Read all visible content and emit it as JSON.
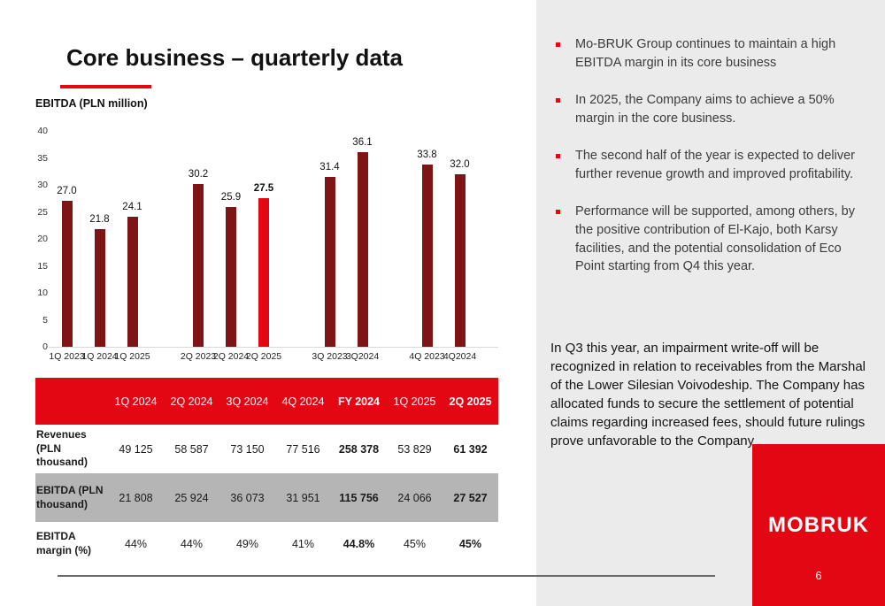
{
  "slide": {
    "title": "Core business – quarterly data",
    "chart_heading": "EBITDA (PLN million)",
    "logo_text": "MOBRUK",
    "page_number": "6"
  },
  "chart_data": {
    "type": "bar",
    "title": "EBITDA (PLN million)",
    "ylabel": "",
    "xlabel": "",
    "ylim": [
      0,
      40
    ],
    "yticks": [
      40,
      35,
      30,
      25,
      20,
      15,
      10,
      5,
      0
    ],
    "grid": false,
    "legend": false,
    "bar_color": "#7f1416",
    "highlight_color": "#e30613",
    "groups": [
      {
        "bars": [
          {
            "label": "1Q 2023",
            "value": 27.0,
            "display": "27.0"
          },
          {
            "label": "1Q 2024",
            "value": 21.8,
            "display": "21.8"
          },
          {
            "label": "1Q 2025",
            "value": 24.1,
            "display": "24.1"
          }
        ]
      },
      {
        "bars": [
          {
            "label": "2Q 2023",
            "value": 30.2,
            "display": "30.2"
          },
          {
            "label": "2Q 2024",
            "value": 25.9,
            "display": "25.9"
          },
          {
            "label": "2Q 2025",
            "value": 27.5,
            "display": "27.5",
            "highlight": true
          }
        ]
      },
      {
        "bars": [
          {
            "label": "3Q 2023",
            "value": 31.4,
            "display": "31.4"
          },
          {
            "label": "3Q2024",
            "value": 36.1,
            "display": "36.1"
          }
        ]
      },
      {
        "bars": [
          {
            "label": "4Q 2023",
            "value": 33.8,
            "display": "33.8"
          },
          {
            "label": "4Q2024",
            "value": 32.0,
            "display": "32.0"
          }
        ]
      }
    ]
  },
  "table": {
    "columns": [
      "1Q 2024",
      "2Q 2024",
      "3Q 2024",
      "4Q 2024",
      "FY 2024",
      "1Q 2025",
      "2Q 2025"
    ],
    "emphasized_value_indices": [
      4,
      6
    ],
    "rows": [
      {
        "label": "Revenues (PLN thousand)",
        "shaded": false,
        "values": [
          "49 125",
          "58 587",
          "73 150",
          "77 516",
          "258 378",
          "53 829",
          "61 392"
        ]
      },
      {
        "label": "EBITDA (PLN thousand)",
        "shaded": true,
        "values": [
          "21 808",
          "25 924",
          "36 073",
          "31 951",
          "115 756",
          "24 066",
          "27 527"
        ]
      },
      {
        "label": "EBITDA margin (%)",
        "shaded": false,
        "values": [
          "44%",
          "44%",
          "49%",
          "41%",
          "44.8%",
          "45%",
          "45%"
        ]
      }
    ]
  },
  "sidebar": {
    "bullets": [
      "Mo-BRUK Group continues to maintain a high EBITDA margin in its core business",
      "In 2025, the Company aims to achieve a 50% margin in the core business.",
      "The second half of the year is expected to deliver further revenue growth and improved profitability.",
      "Performance will be supported, among others, by the positive contribution of El-Kajo, both Karsy facilities, and the potential consolidation of Eco Point starting from Q4 this year."
    ],
    "note": "In Q3 this year, an impairment write-off will be recognized in relation to receivables from the Marshal of the Lower Silesian Voivodeship. The Company has allocated funds to secure the settlement of potential claims regarding increased fees, should future rulings prove unfavorable to the Company"
  },
  "colors": {
    "accent_red": "#e30613",
    "dark_red": "#7f1416",
    "panel_gray": "#ebebeb",
    "row_gray": "#b5b5b5"
  }
}
